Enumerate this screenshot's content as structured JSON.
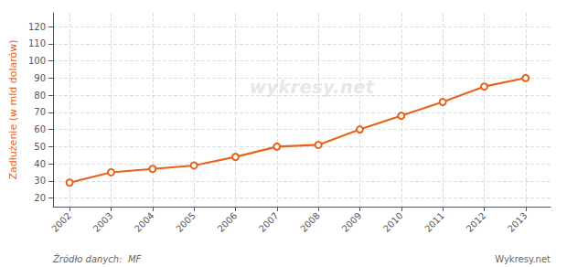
{
  "chart_data": {
    "type": "line",
    "ylabel": "Zadłużenie (w mld dolarów)",
    "annotations": [
      "wykresy.net",
      "Źródło danych:  MF",
      "Wykresy.net"
    ],
    "x": [
      2002,
      2003,
      2004,
      2005,
      2006,
      2007,
      2008,
      2009,
      2010,
      2011,
      2012,
      2013
    ],
    "values": [
      29,
      35,
      37,
      39,
      44,
      50,
      51,
      60,
      68,
      76,
      85,
      90
    ],
    "color": "#E8621A",
    "marker": "circle",
    "xlim": [
      2001.6,
      2013.6
    ],
    "xticks": [
      2002,
      2003,
      2004,
      2005,
      2006,
      2007,
      2008,
      2009,
      2010,
      2011,
      2012,
      2013
    ],
    "ylim": [
      15,
      128
    ],
    "yticks": [
      20,
      30,
      40,
      50,
      60,
      70,
      80,
      90,
      100,
      110,
      120
    ],
    "grid": true
  }
}
